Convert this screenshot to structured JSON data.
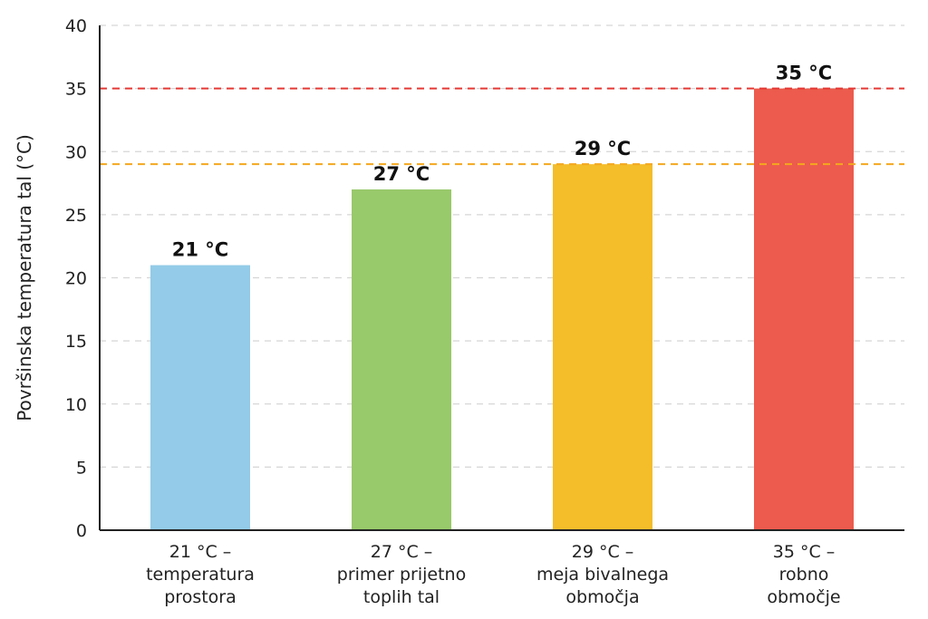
{
  "chart_data": {
    "type": "bar",
    "ylabel": "Površinska temperatura tal (°C)",
    "ylim": [
      0,
      40
    ],
    "yticks": [
      "0",
      "5",
      "10",
      "15",
      "20",
      "25",
      "30",
      "35",
      "40"
    ],
    "grid": true,
    "categories": [
      [
        "21 °C –",
        "temperatura",
        "prostora"
      ],
      [
        "27 °C –",
        "primer prijetno",
        "toplih tal"
      ],
      [
        "29 °C –",
        "meja bivalnega",
        "območja"
      ],
      [
        "35 °C –",
        "robno",
        "območje"
      ]
    ],
    "values": [
      21,
      27,
      29,
      35
    ],
    "data_labels": [
      "21 °C",
      "27 °C",
      "29 °C",
      "35 °C"
    ],
    "colors": [
      "#93cbe8",
      "#98c96a",
      "#f4bd2a",
      "#ec5b4d"
    ],
    "reference_lines": [
      {
        "value": 35,
        "color": "#e53935",
        "style": "dashed"
      },
      {
        "value": 29,
        "color": "#f4a81d",
        "style": "dashed"
      }
    ]
  }
}
